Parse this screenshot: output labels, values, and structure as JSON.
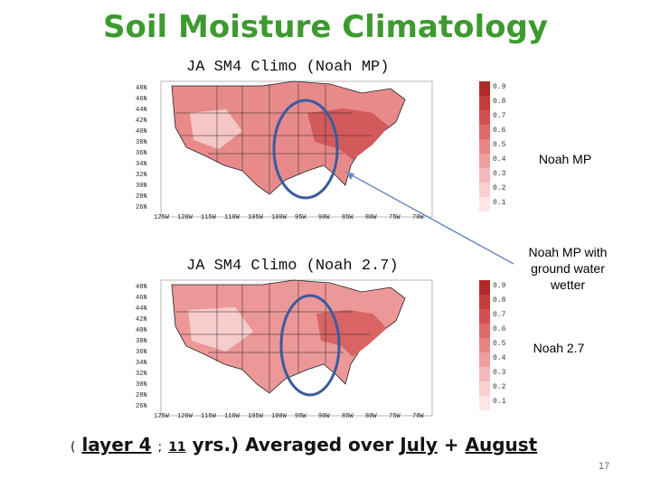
{
  "slide": {
    "title": "Soil Moisture Climatology",
    "page_number": "17",
    "colors": {
      "title": "#3d9a2f",
      "ellipse": "#3b5ba0",
      "arrow": "#6a8cc0"
    }
  },
  "maps": [
    {
      "title": "JA SM4 Climo (Noah MP)",
      "lat_labels": [
        "48N",
        "46N",
        "44N",
        "42N",
        "40N",
        "38N",
        "36N",
        "34N",
        "32N",
        "30N",
        "28N",
        "26N"
      ],
      "lon_labels": [
        "125W",
        "120W",
        "115W",
        "110W",
        "105W",
        "100W",
        "95W",
        "90W",
        "85W",
        "80W",
        "75W",
        "70W"
      ],
      "legend_values": [
        "0.9",
        "0.8",
        "0.7",
        "0.6",
        "0.5",
        "0.4",
        "0.3",
        "0.2",
        "0.1"
      ]
    },
    {
      "title": "JA SM4 Climo (Noah 2.7)",
      "lat_labels": [
        "48N",
        "46N",
        "44N",
        "42N",
        "40N",
        "38N",
        "36N",
        "34N",
        "32N",
        "30N",
        "28N",
        "26N"
      ],
      "lon_labels": [
        "125W",
        "120W",
        "115W",
        "110W",
        "105W",
        "100W",
        "95W",
        "90W",
        "85W",
        "80W",
        "75W",
        "70W"
      ],
      "legend_values": [
        "0.9",
        "0.8",
        "0.7",
        "0.6",
        "0.5",
        "0.4",
        "0.3",
        "0.2",
        "0.1"
      ]
    }
  ],
  "annotations": {
    "noah_mp": "Noah MP",
    "ground_water_line1": "Noah MP with",
    "ground_water_line2": "ground water",
    "ground_water_line3": "wetter",
    "noah_27": "Noah 2.7"
  },
  "footer": {
    "open_paren": "(",
    "layer": "layer 4",
    "semicolon": ";",
    "years_num": "11",
    "years_rest": "yrs.)",
    "averaged_over": "Averaged over",
    "july": "July",
    "plus": "+",
    "august": "August"
  }
}
